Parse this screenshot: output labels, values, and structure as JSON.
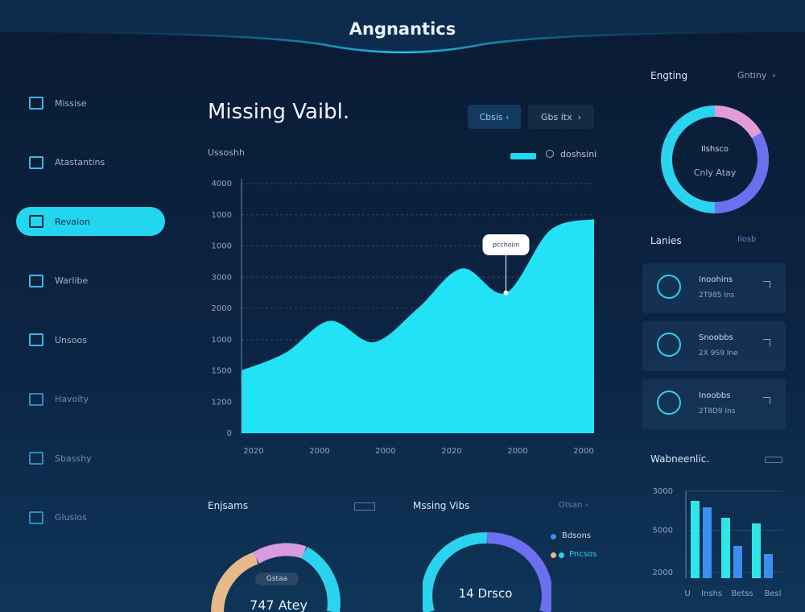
{
  "header": {
    "title": "Angnantics"
  },
  "sidebar": {
    "items": [
      "Missise",
      "Atastantins",
      "Revaion",
      "Warlibe",
      "Unsoos",
      "Havoity",
      "Sbasshy",
      "Glusios"
    ],
    "active": 2
  },
  "main": {
    "title": "Missing Vaibl.",
    "buttons": [
      "Cbsis",
      "Gbs itx"
    ],
    "chart_label": "Ussoshh",
    "legend": "doshsini",
    "tooltip": "pcchoiin",
    "x_labels": [
      "2020",
      "2000",
      "2000",
      "2020",
      "2000",
      "2000"
    ]
  },
  "right": {
    "title": "Engting",
    "link": "Gntiny",
    "donut": [
      "Ilshsco",
      "Cnly Atay"
    ],
    "list_title": "Lanies",
    "list_link": "Ilosb",
    "list": [
      {
        "title": "Inoohins",
        "sub": "2T985 Ins"
      },
      {
        "title": "Snoobbs",
        "sub": "2X 9S9 Ine"
      },
      {
        "title": "Inoobbs",
        "sub": "2T8D9 Ins"
      }
    ],
    "bars_title": "Wabneenlic.",
    "bars_x_labels": [
      "U",
      "Inshs",
      "Betss",
      "Besl"
    ]
  },
  "bottom": {
    "left_title": "Enjsams",
    "left_donut": [
      "Gstaa",
      "747 Atey"
    ],
    "mid_title": "Mssing Vibs",
    "mid_link": "Otsan",
    "mid_legend": [
      "Bdsons",
      "Pncsos"
    ],
    "mid_donut": "14 Drsco"
  },
  "chart_data": [
    {
      "type": "area",
      "color": "#22e3f5",
      "values": [
        1006,
        1290,
        1800,
        1460,
        2000,
        2640,
        2250,
        3250,
        3430
      ],
      "ylim": [
        0,
        4000
      ],
      "yticks": [
        0,
        {
          "value": 500,
          "label": "1200"
        },
        {
          "value": 1000,
          "label": "1500"
        },
        {
          "value": 1500,
          "label": "1000"
        },
        2000,
        {
          "value": 2500,
          "label": "3000"
        },
        {
          "value": 3000,
          "label": "1000"
        },
        {
          "value": 3500,
          "label": "1000"
        },
        4000
      ],
      "grid": true
    },
    {
      "type": "bar",
      "values": [
        2667,
        2444,
        2083,
        1111,
        1889,
        833
      ],
      "colors": [
        "#2ee6e6",
        "#3b8ef0",
        "#2ee6e6",
        "#3b8ef0",
        "#2ee6e6",
        "#3b8ef0"
      ],
      "ylim": [
        0,
        3000
      ],
      "yticks": [
        3000,
        {
          "value": 1650,
          "label": "5000"
        },
        {
          "value": 200,
          "label": "2000"
        }
      ],
      "grid": true
    }
  ]
}
